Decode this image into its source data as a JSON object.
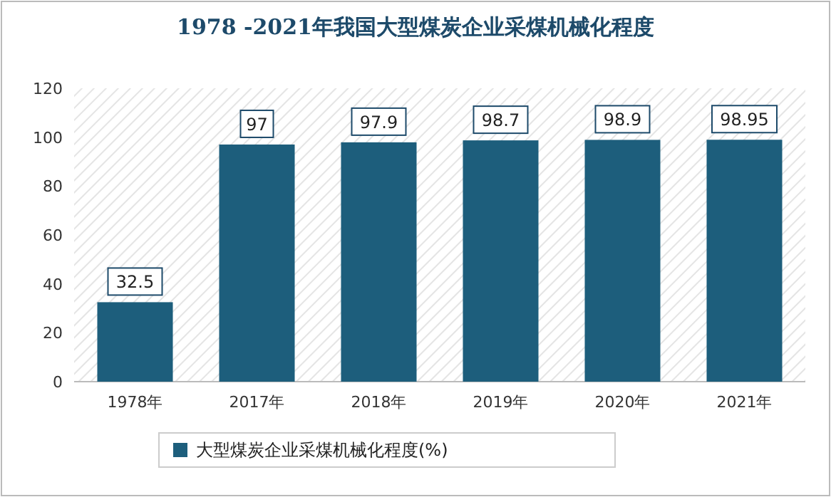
{
  "chart_data": {
    "type": "bar",
    "title": "1978 -2021年我国大型煤炭企业采煤机械化程度",
    "categories": [
      "1978年",
      "2017年",
      "2018年",
      "2019年",
      "2020年",
      "2021年"
    ],
    "series": [
      {
        "name": "大型煤炭企业采煤机械化程度(%)",
        "color": "#1d5e7c",
        "values": [
          32.5,
          97,
          97.9,
          98.7,
          98.9,
          98.95
        ]
      }
    ],
    "ylim": [
      0,
      120
    ],
    "yticks": [
      0,
      20,
      40,
      60,
      80,
      100,
      120
    ],
    "data_labels": true,
    "legend": "bottom"
  }
}
